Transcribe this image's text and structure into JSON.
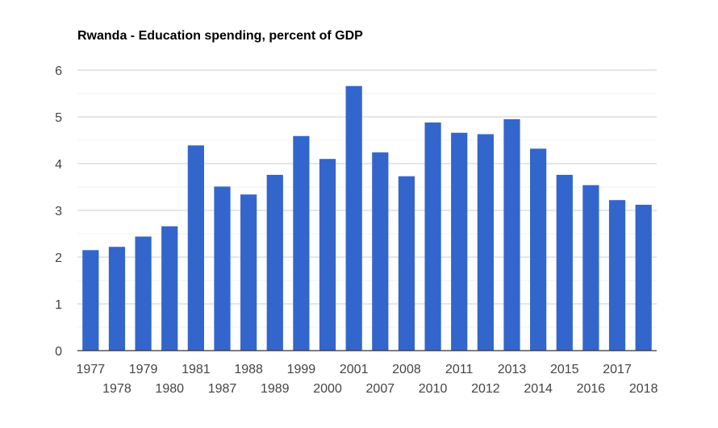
{
  "chart_data": {
    "type": "bar",
    "title": "Rwanda - Education spending, percent of GDP",
    "xlabel": "",
    "ylabel": "",
    "categories": [
      "1977",
      "1978",
      "1979",
      "1980",
      "1981",
      "1987",
      "1988",
      "1989",
      "1999",
      "2000",
      "2001",
      "2007",
      "2008",
      "2010",
      "2011",
      "2012",
      "2013",
      "2014",
      "2015",
      "2016",
      "2017",
      "2018"
    ],
    "values": [
      2.15,
      2.22,
      2.44,
      2.66,
      4.39,
      3.51,
      3.34,
      3.76,
      4.59,
      4.1,
      5.66,
      4.24,
      3.73,
      4.88,
      4.66,
      4.63,
      4.95,
      4.32,
      3.76,
      3.54,
      3.22,
      3.12
    ],
    "ylim": [
      0,
      6
    ],
    "yticks": [
      0,
      1,
      2,
      3,
      4,
      5,
      6
    ],
    "grid": true,
    "bar_color": "#3366cc",
    "legend": "none"
  }
}
